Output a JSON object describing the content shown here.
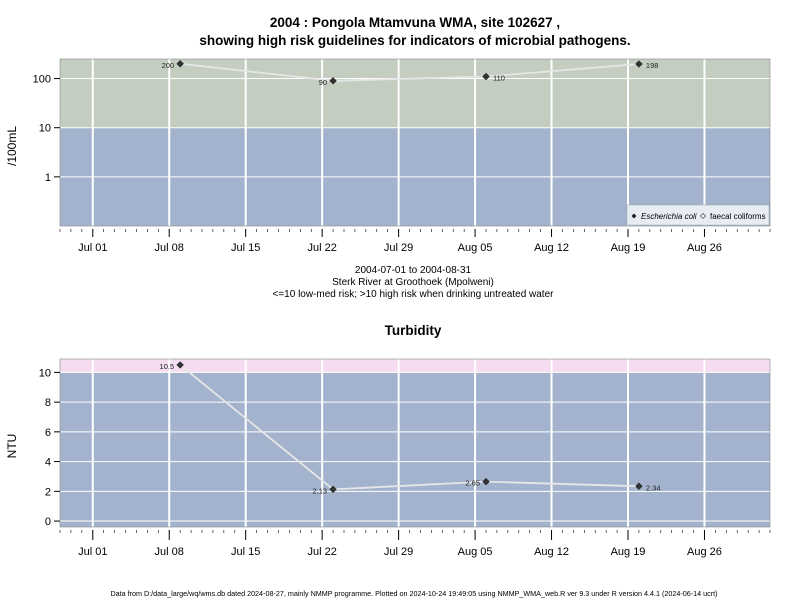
{
  "footer": "Data from D:/data_large/wq/wms.db dated 2024-08-27, mainly NMMP programme. Plotted on 2024-10-24 19:49:05 using NMMP_WMA_web.R ver 9.3 under R version 4.4.1 (2024-06-14 ucrt)",
  "colors": {
    "high_risk_band": "#c3cdc0",
    "low_risk_band": "#a3b3cd",
    "turbidity_high_band": "#f5dcf0",
    "grid": "#ffffff",
    "line": "#e6e6e6",
    "point": "#333333"
  },
  "chart_data": [
    {
      "type": "line",
      "title_line1": "2004 : Pongola Mtamvuna WMA, site 102627 ,",
      "title_line2": "showing high risk guidelines for indicators of microbial pathogens.",
      "ylabel": "/100mL",
      "yscale": "log",
      "ylim": [
        0.1,
        250
      ],
      "yticks": [
        1,
        10,
        100
      ],
      "ytick_labels": [
        "1",
        "10",
        "100"
      ],
      "threshold": 10,
      "x_range": [
        "2004-06-28",
        "2004-09-01"
      ],
      "x_ticks": [
        "2004-07-01",
        "2004-07-08",
        "2004-07-15",
        "2004-07-22",
        "2004-07-29",
        "2004-08-05",
        "2004-08-12",
        "2004-08-19",
        "2004-08-26"
      ],
      "x_tick_labels": [
        "Jul 01",
        "Jul 08",
        "Jul 15",
        "Jul 22",
        "Jul 29",
        "Aug 05",
        "Aug 12",
        "Aug 19",
        "Aug 26"
      ],
      "grid": true,
      "series": [
        {
          "name": "Escherichia coli",
          "marker": "filled-diamond",
          "x": [
            "2004-07-09",
            "2004-07-23",
            "2004-08-06",
            "2004-08-20"
          ],
          "y": [
            200,
            90,
            110,
            198
          ],
          "labels": [
            "200",
            "90",
            "110",
            "198"
          ]
        }
      ],
      "legend": {
        "placement": "bottom-right",
        "entries": [
          {
            "label": "Escherichia coli",
            "marker": "filled-diamond"
          },
          {
            "label": "faecal coliforms",
            "marker": "open-diamond"
          }
        ]
      },
      "caption": [
        "2004-07-01 to 2004-08-31",
        "Sterk River at Groothoek (Mpolweni)",
        "<=10 low-med risk; >10 high risk when drinking untreated water"
      ]
    },
    {
      "type": "line",
      "title": "Turbidity",
      "ylabel": "NTU",
      "yscale": "linear",
      "ylim": [
        -0.4,
        10.9
      ],
      "yticks": [
        0,
        2,
        4,
        6,
        8,
        10
      ],
      "ytick_labels": [
        "0",
        "2",
        "4",
        "6",
        "8",
        "10"
      ],
      "threshold": 10,
      "x_range": [
        "2004-06-28",
        "2004-09-01"
      ],
      "x_ticks": [
        "2004-07-01",
        "2004-07-08",
        "2004-07-15",
        "2004-07-22",
        "2004-07-29",
        "2004-08-05",
        "2004-08-12",
        "2004-08-19",
        "2004-08-26"
      ],
      "x_tick_labels": [
        "Jul 01",
        "Jul 08",
        "Jul 15",
        "Jul 22",
        "Jul 29",
        "Aug 05",
        "Aug 12",
        "Aug 19",
        "Aug 26"
      ],
      "grid": true,
      "series": [
        {
          "marker": "filled-diamond",
          "x": [
            "2004-07-09",
            "2004-07-23",
            "2004-08-06",
            "2004-08-20"
          ],
          "y": [
            10.5,
            2.13,
            2.65,
            2.34
          ],
          "labels": [
            "10.5",
            "2.13",
            "2.65",
            "2.34"
          ]
        }
      ]
    }
  ]
}
